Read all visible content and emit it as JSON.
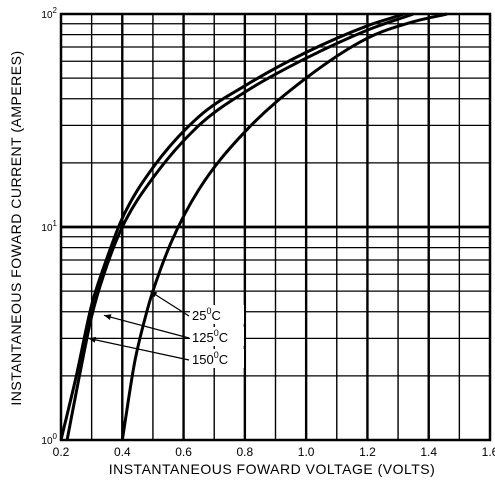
{
  "chart_data": {
    "type": "line",
    "title": "",
    "xlabel": "INSTANTANEOUS FOWARD VOLTAGE (VOLTS)",
    "ylabel": "INSTANTANEOUS FOWARD CURRENT (AMPERES)",
    "x_ticks": [
      "0.2",
      "0.4",
      "0.6",
      "0.8",
      "1.0",
      "1.2",
      "1.4",
      "1.6"
    ],
    "y_ticks": [
      {
        "base": "10",
        "exp": "0"
      },
      {
        "base": "10",
        "exp": "1"
      },
      {
        "base": "10",
        "exp": "2"
      }
    ],
    "xlim": [
      0.2,
      1.6
    ],
    "ylim": [
      1,
      100
    ],
    "yscale": "log",
    "grid": true,
    "series": [
      {
        "name": "25°C",
        "label_base": "25",
        "label_exp": "0",
        "label_unit": "C",
        "x": [
          0.4,
          0.44,
          0.48,
          0.5,
          0.56,
          0.65,
          0.8,
          1.0,
          1.2,
          1.35,
          1.46
        ],
        "y": [
          1.0,
          2.3,
          4.0,
          5.0,
          8.5,
          15,
          28,
          50,
          77,
          92,
          100
        ]
      },
      {
        "name": "125°C",
        "label_base": "125",
        "label_exp": "0",
        "label_unit": "C",
        "x": [
          0.22,
          0.26,
          0.3,
          0.34,
          0.4,
          0.5,
          0.65,
          0.8,
          1.0,
          1.2,
          1.35
        ],
        "y": [
          1.0,
          2.0,
          3.8,
          6.0,
          10,
          17,
          30,
          43,
          62,
          84,
          100
        ]
      },
      {
        "name": "150°C",
        "label_base": "150",
        "label_exp": "0",
        "label_unit": "C",
        "x": [
          0.2,
          0.25,
          0.3,
          0.34,
          0.4,
          0.5,
          0.65,
          0.8,
          1.0,
          1.2,
          1.32
        ],
        "y": [
          1.0,
          2.0,
          4.3,
          6.5,
          11,
          19,
          33,
          46,
          66,
          88,
          100
        ]
      }
    ]
  }
}
